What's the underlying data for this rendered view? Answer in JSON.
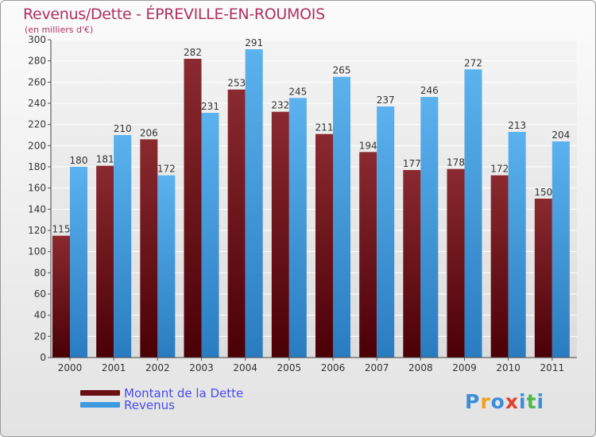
{
  "title": "Revenus/Dette - ÉPREVILLE-EN-ROUMOIS",
  "subtitle": "(en milliers d'€)",
  "colors": {
    "dette": "#7a1c24",
    "revenus": "#4fa8e8",
    "title": "#b03060",
    "legend_text": "#4a4aee"
  },
  "legend": [
    {
      "label": "Montant de la Dette",
      "color": "#6a0f14"
    },
    {
      "label": "Revenus",
      "color": "#3e9ae0"
    }
  ],
  "logo": {
    "text": "Proxiti",
    "letters": [
      "P",
      "r",
      "o",
      "x",
      "i",
      "t",
      "i"
    ],
    "colors": [
      "#3b8ed8",
      "#f0a020",
      "#3b8ed8",
      "#e0402a",
      "#3b8ed8",
      "#4ab84a",
      "#3b8ed8"
    ]
  },
  "chart_data": {
    "type": "bar",
    "categories": [
      "2000",
      "2001",
      "2002",
      "2003",
      "2004",
      "2005",
      "2006",
      "2007",
      "2008",
      "2009",
      "2010",
      "2011"
    ],
    "series": [
      {
        "name": "Montant de la Dette",
        "values": [
          115,
          181,
          206,
          282,
          253,
          232,
          211,
          194,
          177,
          178,
          172,
          150
        ]
      },
      {
        "name": "Revenus",
        "values": [
          180,
          210,
          172,
          231,
          291,
          245,
          265,
          237,
          246,
          272,
          213,
          204
        ]
      }
    ],
    "ylim": [
      0,
      300
    ],
    "yticks": [
      0,
      20,
      40,
      60,
      80,
      100,
      120,
      140,
      160,
      180,
      200,
      220,
      240,
      260,
      280,
      300
    ],
    "grid": true,
    "legend_position": "bottom-left"
  }
}
